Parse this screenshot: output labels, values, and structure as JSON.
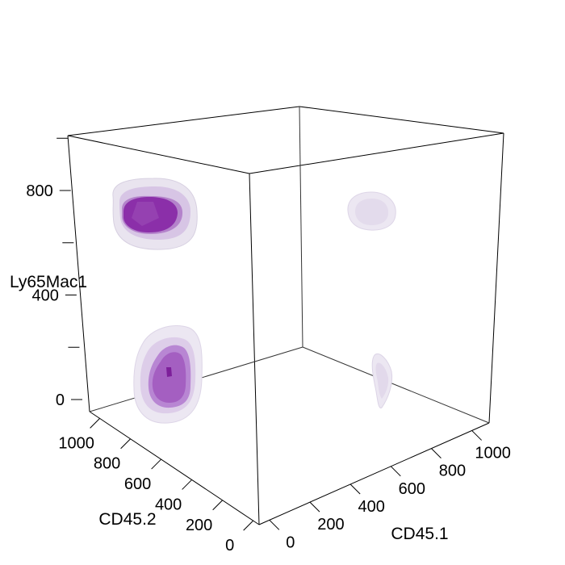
{
  "chart_data": {
    "type": "3d-density-contour",
    "axes": {
      "x": {
        "label": "CD45.1",
        "range": [
          0,
          1000
        ],
        "tick_labels": [
          "0",
          "200",
          "400",
          "600",
          "800",
          "1000"
        ]
      },
      "y": {
        "label": "CD45.2",
        "range": [
          0,
          1000
        ],
        "tick_labels": [
          "0",
          "200",
          "400",
          "600",
          "800",
          "1000"
        ]
      },
      "z": {
        "label": "Ly65Mac1",
        "range": [
          0,
          1000
        ],
        "tick_labels": [
          "0",
          "400",
          "800"
        ]
      }
    },
    "box": true,
    "grid": false,
    "level_colors": [
      "#e6e0ee",
      "#c59bd9",
      "#8a2fa8"
    ],
    "clusters": [
      {
        "CD45.1": 100,
        "CD45.2": 880,
        "Ly65Mac1": 780,
        "levels": 3
      },
      {
        "CD45.1": 120,
        "CD45.2": 820,
        "Ly65Mac1": 170,
        "levels": 3
      },
      {
        "CD45.1": 850,
        "CD45.2": 720,
        "Ly65Mac1": 760,
        "levels": 1
      },
      {
        "CD45.1": 880,
        "CD45.2": 650,
        "Ly65Mac1": 80,
        "levels": 1
      }
    ]
  }
}
